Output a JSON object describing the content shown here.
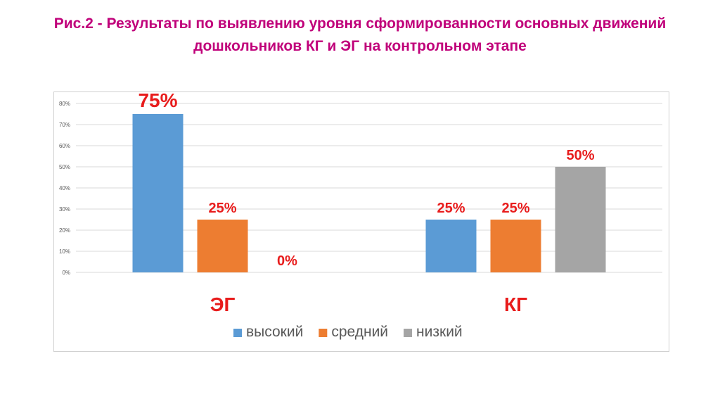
{
  "title": {
    "line1": "Рис.2 - Результаты по выявлению уровня сформированности основных движений",
    "line2": "дошкольников КГ и ЭГ на контрольном этапе"
  },
  "chart_data": {
    "type": "bar",
    "categories": [
      "ЭГ",
      "КГ"
    ],
    "series": [
      {
        "name": "высокий",
        "color": "#5b9bd5",
        "values": [
          75,
          25
        ],
        "labels": [
          "75%",
          "25%"
        ]
      },
      {
        "name": "средний",
        "color": "#ed7d31",
        "values": [
          25,
          25
        ],
        "labels": [
          "25%",
          "25%"
        ]
      },
      {
        "name": "низкий",
        "color": "#a5a5a5",
        "values": [
          0,
          50
        ],
        "labels": [
          "0%",
          "50%"
        ]
      }
    ],
    "ylim": [
      0,
      80
    ],
    "yticks": [
      "0%",
      "10%",
      "20%",
      "30%",
      "40%",
      "50%",
      "60%",
      "70%",
      "80%"
    ],
    "grid": true,
    "legend": "bottom",
    "label_color": "#e81c1c"
  }
}
